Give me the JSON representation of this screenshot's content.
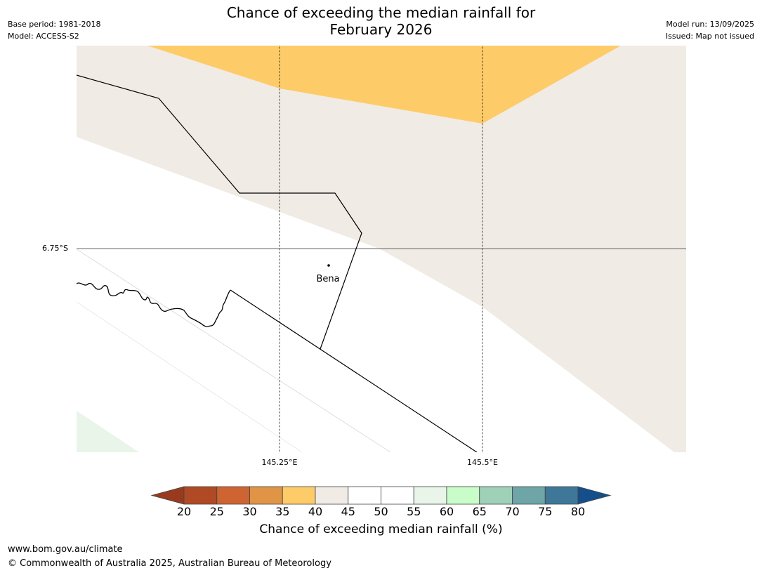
{
  "title_line1": "Chance of exceeding the median rainfall for",
  "title_line2": "February 2026",
  "meta_left": {
    "base_period": "Base period: 1981-2018",
    "model": "Model: ACCESS-S2"
  },
  "meta_right": {
    "model_run": "Model run: 13/09/2025",
    "issued": "Issued: Map not issued"
  },
  "map": {
    "lat_label": "6.75°S",
    "lon_labels": [
      "145.25°E",
      "145.5°E"
    ],
    "place_label": "Bena",
    "colors": {
      "orange": "#fecb69",
      "beige": "#f0ebe5",
      "green": "#e8f5e8"
    }
  },
  "colorbar": {
    "ticks": [
      "20",
      "25",
      "30",
      "35",
      "40",
      "45",
      "50",
      "55",
      "60",
      "65",
      "70",
      "75",
      "80"
    ],
    "colors": [
      "#b04a25",
      "#cd6432",
      "#e09445",
      "#fecb69",
      "#f0ebe5",
      "#ffffff",
      "#ffffff",
      "#e8f5e8",
      "#c8fcc8",
      "#9ed1b8",
      "#6ea5a7",
      "#3f7799"
    ],
    "below_color": "#993a1f",
    "above_color": "#144f8c",
    "label": "Chance of exceeding median rainfall (%)"
  },
  "footer": {
    "url": "www.bom.gov.au/climate",
    "copyright": "© Commonwealth of Australia 2025, Australian Bureau of Meteorology"
  }
}
